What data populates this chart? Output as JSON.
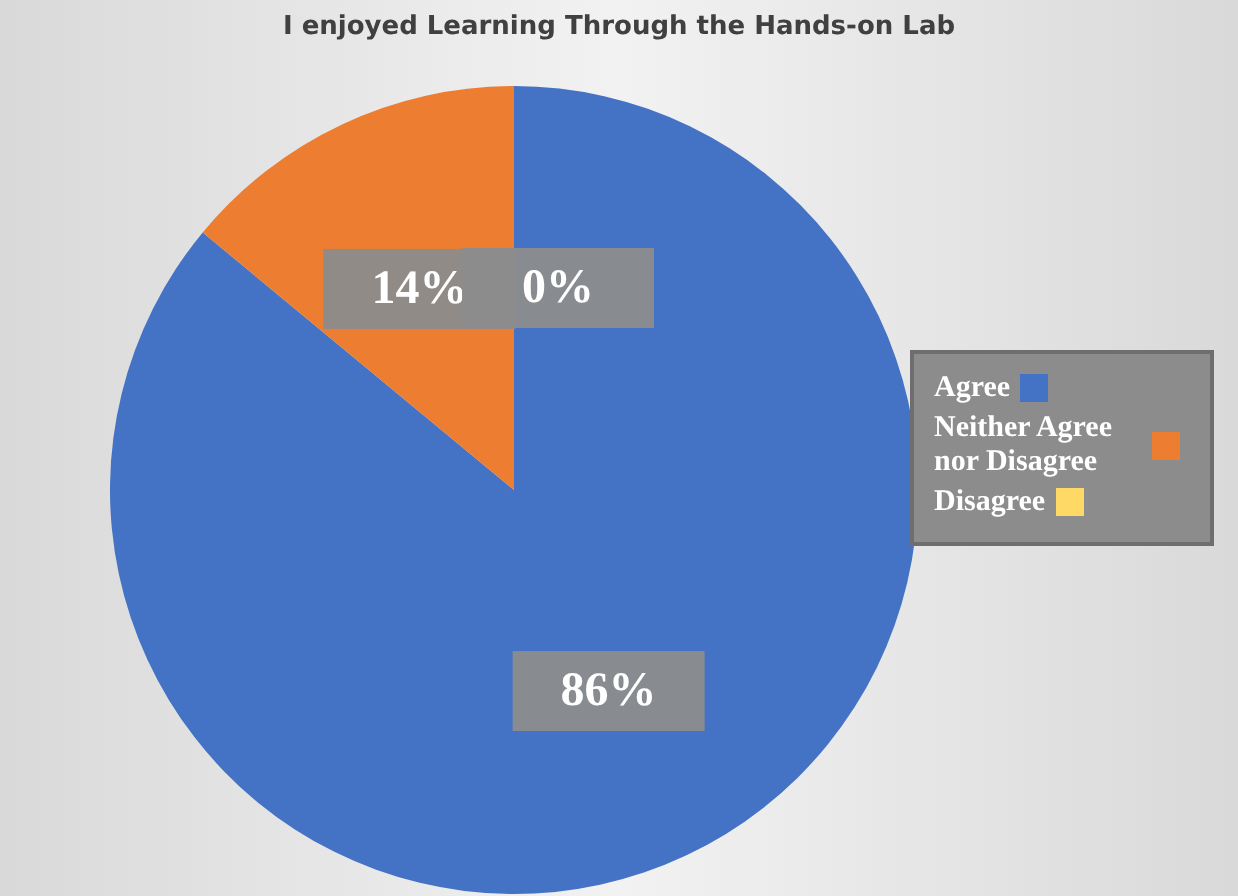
{
  "chart_data": {
    "type": "pie",
    "title": "I enjoyed Learning Through the Hands-on Lab",
    "categories": [
      "Agree",
      "Neither Agree nor Disagree",
      "Disagree"
    ],
    "values": [
      86,
      14,
      0
    ],
    "colors": [
      "#4472c4",
      "#ed7d31",
      "#ffd966"
    ],
    "value_labels": [
      "86%",
      "14%",
      "0%"
    ],
    "legend": "right"
  }
}
